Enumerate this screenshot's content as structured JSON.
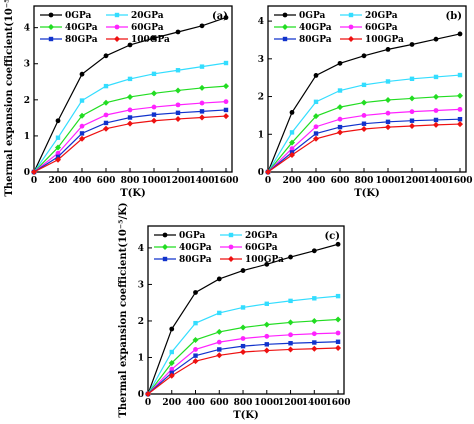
{
  "chart_data": [
    {
      "type": "line",
      "panel_label": "(a)",
      "xlabel": "T(K)",
      "ylabel": "Thermal expansion coefficient(10⁻⁵/K)",
      "xlim": [
        0,
        1650
      ],
      "ylim": [
        0,
        4.6
      ],
      "xticks": [
        0,
        200,
        400,
        600,
        800,
        1000,
        1200,
        1400,
        1600
      ],
      "yticks": [
        0,
        1,
        2,
        3,
        4
      ],
      "x": [
        0,
        200,
        400,
        600,
        800,
        1000,
        1200,
        1400,
        1600
      ],
      "legend_position": "top-left",
      "series": [
        {
          "name": "0GPa",
          "color": "#000000",
          "values": [
            0,
            1.42,
            2.71,
            3.22,
            3.52,
            3.71,
            3.88,
            4.05,
            4.28
          ]
        },
        {
          "name": "20GPa",
          "color": "#33ddff",
          "values": [
            0,
            0.95,
            1.98,
            2.38,
            2.58,
            2.72,
            2.82,
            2.92,
            3.02
          ]
        },
        {
          "name": "40GPa",
          "color": "#22dd22",
          "values": [
            0,
            0.68,
            1.56,
            1.92,
            2.08,
            2.18,
            2.26,
            2.33,
            2.38
          ]
        },
        {
          "name": "60GPa",
          "color": "#ff22ff",
          "values": [
            0,
            0.52,
            1.27,
            1.58,
            1.72,
            1.8,
            1.86,
            1.91,
            1.95
          ]
        },
        {
          "name": "80GPa",
          "color": "#1133cc",
          "values": [
            0,
            0.42,
            1.07,
            1.36,
            1.51,
            1.59,
            1.64,
            1.68,
            1.72
          ]
        },
        {
          "name": "100GPa",
          "color": "#ee1111",
          "values": [
            0,
            0.34,
            0.92,
            1.2,
            1.34,
            1.42,
            1.47,
            1.51,
            1.55
          ]
        }
      ]
    },
    {
      "type": "line",
      "panel_label": "(b)",
      "xlabel": "T(K)",
      "ylabel": "",
      "xlim": [
        0,
        1650
      ],
      "ylim": [
        0,
        4.4
      ],
      "xticks": [
        0,
        200,
        400,
        600,
        800,
        1000,
        1200,
        1400,
        1600
      ],
      "yticks": [
        0,
        1,
        2,
        3,
        4
      ],
      "x": [
        0,
        200,
        400,
        600,
        800,
        1000,
        1200,
        1400,
        1600
      ],
      "legend_position": "top-left",
      "series": [
        {
          "name": "0GPa",
          "color": "#000000",
          "values": [
            0,
            1.58,
            2.56,
            2.88,
            3.08,
            3.25,
            3.38,
            3.52,
            3.66
          ]
        },
        {
          "name": "20GPa",
          "color": "#33ddff",
          "values": [
            0,
            1.05,
            1.86,
            2.16,
            2.31,
            2.4,
            2.47,
            2.52,
            2.57
          ]
        },
        {
          "name": "40GPa",
          "color": "#22dd22",
          "values": [
            0,
            0.78,
            1.48,
            1.72,
            1.84,
            1.91,
            1.95,
            1.99,
            2.02
          ]
        },
        {
          "name": "60GPa",
          "color": "#ff22ff",
          "values": [
            0,
            0.62,
            1.2,
            1.4,
            1.5,
            1.56,
            1.6,
            1.63,
            1.66
          ]
        },
        {
          "name": "80GPa",
          "color": "#1133cc",
          "values": [
            0,
            0.52,
            1.02,
            1.19,
            1.28,
            1.33,
            1.36,
            1.38,
            1.4
          ]
        },
        {
          "name": "100GPa",
          "color": "#ee1111",
          "values": [
            0,
            0.45,
            0.88,
            1.05,
            1.14,
            1.19,
            1.22,
            1.25,
            1.27
          ]
        }
      ]
    },
    {
      "type": "line",
      "panel_label": "(c)",
      "xlabel": "T(K)",
      "ylabel": "Thermal expansion coefficient(10⁻⁵/K)",
      "xlim": [
        0,
        1650
      ],
      "ylim": [
        0,
        4.6
      ],
      "xticks": [
        0,
        200,
        400,
        600,
        800,
        1000,
        1200,
        1400,
        1600
      ],
      "yticks": [
        0,
        1,
        2,
        3,
        4
      ],
      "x": [
        0,
        200,
        400,
        600,
        800,
        1000,
        1200,
        1400,
        1600
      ],
      "legend_position": "top-left",
      "series": [
        {
          "name": "0GPa",
          "color": "#000000",
          "values": [
            0,
            1.78,
            2.78,
            3.15,
            3.38,
            3.55,
            3.75,
            3.92,
            4.1
          ]
        },
        {
          "name": "20GPa",
          "color": "#33ddff",
          "values": [
            0,
            1.15,
            1.94,
            2.22,
            2.37,
            2.47,
            2.55,
            2.62,
            2.68
          ]
        },
        {
          "name": "40GPa",
          "color": "#22dd22",
          "values": [
            0,
            0.85,
            1.48,
            1.7,
            1.82,
            1.9,
            1.96,
            2.0,
            2.04
          ]
        },
        {
          "name": "60GPa",
          "color": "#ff22ff",
          "values": [
            0,
            0.68,
            1.22,
            1.42,
            1.52,
            1.58,
            1.62,
            1.65,
            1.67
          ]
        },
        {
          "name": "80GPa",
          "color": "#1133cc",
          "values": [
            0,
            0.58,
            1.05,
            1.22,
            1.31,
            1.36,
            1.39,
            1.41,
            1.43
          ]
        },
        {
          "name": "100GPa",
          "color": "#ee1111",
          "values": [
            0,
            0.5,
            0.9,
            1.06,
            1.15,
            1.19,
            1.22,
            1.24,
            1.26
          ]
        }
      ]
    }
  ]
}
